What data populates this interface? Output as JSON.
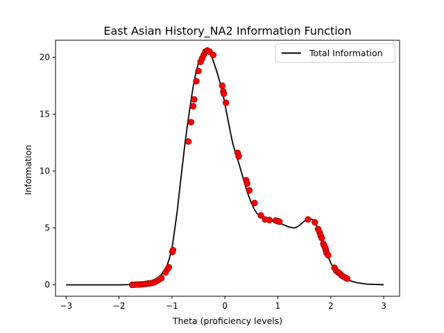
{
  "chart_data": {
    "type": "line",
    "title": "East Asian History_NA2 Information Function",
    "xlabel": "Theta (proficiency levels)",
    "ylabel": "Information",
    "xlim": [
      -3.2,
      3.3
    ],
    "ylim": [
      -1.0,
      21.5
    ],
    "xticks": [
      -3,
      -2,
      -1,
      0,
      1,
      2,
      3
    ],
    "yticks": [
      0,
      5,
      10,
      15,
      20
    ],
    "grid": false,
    "legend": {
      "placement": "top-right",
      "entries": [
        "Total Information"
      ]
    },
    "colors": {
      "line": "#000000",
      "points": "#ff0000",
      "point_edge": "#8b0000"
    },
    "series": [
      {
        "name": "Total Information",
        "x": [
          -3.0,
          -2.5,
          -2.0,
          -1.8,
          -1.6,
          -1.4,
          -1.3,
          -1.2,
          -1.1,
          -1.05,
          -1.0,
          -0.95,
          -0.9,
          -0.85,
          -0.8,
          -0.75,
          -0.7,
          -0.65,
          -0.6,
          -0.55,
          -0.5,
          -0.45,
          -0.4,
          -0.35,
          -0.3,
          -0.25,
          -0.2,
          -0.15,
          -0.1,
          -0.05,
          0.0,
          0.05,
          0.1,
          0.15,
          0.2,
          0.25,
          0.3,
          0.35,
          0.4,
          0.45,
          0.5,
          0.55,
          0.6,
          0.7,
          0.8,
          0.9,
          1.0,
          1.1,
          1.2,
          1.3,
          1.35,
          1.4,
          1.5,
          1.55,
          1.6,
          1.65,
          1.7,
          1.75,
          1.8,
          1.85,
          1.9,
          1.95,
          2.0,
          2.1,
          2.2,
          2.3,
          2.5,
          2.7,
          3.0
        ],
        "y": [
          0.0,
          0.0,
          0.0,
          0.02,
          0.08,
          0.3,
          0.5,
          0.9,
          1.6,
          2.3,
          3.2,
          4.8,
          6.5,
          8.6,
          10.6,
          12.6,
          14.3,
          15.9,
          17.4,
          18.6,
          19.5,
          20.1,
          20.45,
          20.55,
          20.45,
          20.1,
          19.4,
          18.7,
          17.9,
          17.1,
          15.9,
          14.7,
          13.5,
          12.4,
          11.6,
          10.9,
          10.1,
          9.3,
          8.5,
          7.8,
          7.2,
          6.7,
          6.3,
          5.9,
          5.7,
          5.6,
          5.5,
          5.3,
          5.1,
          5.0,
          5.05,
          5.2,
          5.6,
          5.78,
          5.82,
          5.75,
          5.5,
          5.0,
          4.4,
          3.7,
          3.1,
          2.5,
          1.9,
          1.2,
          0.75,
          0.45,
          0.18,
          0.06,
          0.01
        ]
      },
      {
        "name": "Items",
        "points": [
          [
            -1.75,
            0.0
          ],
          [
            -1.7,
            0.02
          ],
          [
            -1.65,
            0.03
          ],
          [
            -1.6,
            0.04
          ],
          [
            -1.55,
            0.05
          ],
          [
            -1.5,
            0.08
          ],
          [
            -1.45,
            0.12
          ],
          [
            -1.4,
            0.15
          ],
          [
            -1.35,
            0.2
          ],
          [
            -1.3,
            0.3
          ],
          [
            -1.25,
            0.45
          ],
          [
            -1.2,
            0.6
          ],
          [
            -1.12,
            1.1
          ],
          [
            -1.08,
            1.4
          ],
          [
            -1.06,
            1.55
          ],
          [
            -0.99,
            2.9
          ],
          [
            -0.98,
            3.05
          ],
          [
            -0.69,
            12.6
          ],
          [
            -0.64,
            14.3
          ],
          [
            -0.6,
            15.7
          ],
          [
            -0.58,
            16.3
          ],
          [
            -0.54,
            17.9
          ],
          [
            -0.5,
            18.8
          ],
          [
            -0.46,
            19.6
          ],
          [
            -0.43,
            19.9
          ],
          [
            -0.4,
            20.2
          ],
          [
            -0.37,
            20.5
          ],
          [
            -0.33,
            20.6
          ],
          [
            -0.29,
            20.5
          ],
          [
            -0.22,
            20.2
          ],
          [
            -0.05,
            17.5
          ],
          [
            -0.03,
            17.0
          ],
          [
            -0.02,
            16.8
          ],
          [
            0.02,
            16.0
          ],
          [
            0.24,
            11.6
          ],
          [
            0.26,
            11.3
          ],
          [
            0.4,
            9.2
          ],
          [
            0.42,
            8.9
          ],
          [
            0.46,
            8.3
          ],
          [
            0.56,
            7.2
          ],
          [
            0.68,
            6.1
          ],
          [
            0.76,
            5.75
          ],
          [
            0.84,
            5.7
          ],
          [
            0.96,
            5.65
          ],
          [
            1.0,
            5.6
          ],
          [
            1.03,
            5.55
          ],
          [
            1.57,
            5.75
          ],
          [
            1.7,
            5.5
          ],
          [
            1.76,
            4.9
          ],
          [
            1.79,
            4.6
          ],
          [
            1.81,
            4.3
          ],
          [
            1.83,
            4.1
          ],
          [
            1.86,
            3.6
          ],
          [
            1.88,
            3.4
          ],
          [
            1.9,
            3.2
          ],
          [
            1.91,
            3.0
          ],
          [
            1.92,
            2.8
          ],
          [
            1.95,
            2.6
          ],
          [
            2.07,
            1.5
          ],
          [
            2.1,
            1.25
          ],
          [
            2.14,
            1.1
          ],
          [
            2.17,
            1.0
          ],
          [
            2.2,
            0.85
          ],
          [
            2.23,
            0.75
          ],
          [
            2.27,
            0.65
          ],
          [
            2.31,
            0.55
          ]
        ]
      }
    ]
  }
}
